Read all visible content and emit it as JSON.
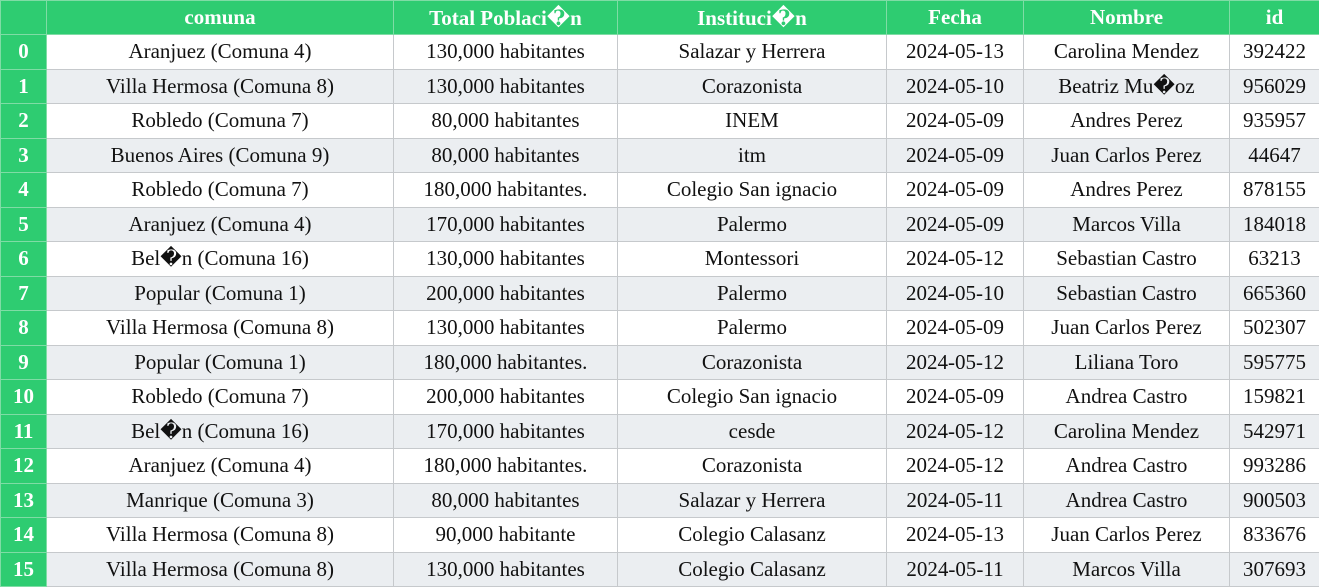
{
  "table": {
    "columns": [
      "",
      "comuna",
      "Total Poblaci�n",
      "Instituci�n",
      "Fecha",
      "Nombre",
      "id"
    ],
    "rows": [
      {
        "index": "0",
        "comuna": "Aranjuez (Comuna 4)",
        "total": "130,000 habitantes",
        "institucion": "Salazar y Herrera",
        "fecha": "2024-05-13",
        "nombre": "Carolina Mendez",
        "id": "392422"
      },
      {
        "index": "1",
        "comuna": "Villa Hermosa (Comuna 8)",
        "total": "130,000 habitantes",
        "institucion": "Corazonista",
        "fecha": "2024-05-10",
        "nombre": "Beatriz Mu�oz",
        "id": "956029"
      },
      {
        "index": "2",
        "comuna": "Robledo (Comuna 7)",
        "total": "80,000 habitantes",
        "institucion": "INEM",
        "fecha": "2024-05-09",
        "nombre": "Andres Perez",
        "id": "935957"
      },
      {
        "index": "3",
        "comuna": "Buenos Aires (Comuna 9)",
        "total": "80,000 habitantes",
        "institucion": "itm",
        "fecha": "2024-05-09",
        "nombre": "Juan Carlos Perez",
        "id": "44647"
      },
      {
        "index": "4",
        "comuna": "Robledo (Comuna 7)",
        "total": "180,000 habitantes.",
        "institucion": "Colegio San ignacio",
        "fecha": "2024-05-09",
        "nombre": "Andres Perez",
        "id": "878155"
      },
      {
        "index": "5",
        "comuna": "Aranjuez (Comuna 4)",
        "total": "170,000 habitantes",
        "institucion": "Palermo",
        "fecha": "2024-05-09",
        "nombre": "Marcos Villa",
        "id": "184018"
      },
      {
        "index": "6",
        "comuna": "Bel�n (Comuna 16)",
        "total": "130,000 habitantes",
        "institucion": "Montessori",
        "fecha": "2024-05-12",
        "nombre": "Sebastian Castro",
        "id": "63213"
      },
      {
        "index": "7",
        "comuna": "Popular (Comuna 1)",
        "total": "200,000 habitantes",
        "institucion": "Palermo",
        "fecha": "2024-05-10",
        "nombre": "Sebastian Castro",
        "id": "665360"
      },
      {
        "index": "8",
        "comuna": "Villa Hermosa (Comuna 8)",
        "total": "130,000 habitantes",
        "institucion": "Palermo",
        "fecha": "2024-05-09",
        "nombre": "Juan Carlos Perez",
        "id": "502307"
      },
      {
        "index": "9",
        "comuna": "Popular (Comuna 1)",
        "total": "180,000 habitantes.",
        "institucion": "Corazonista",
        "fecha": "2024-05-12",
        "nombre": "Liliana Toro",
        "id": "595775"
      },
      {
        "index": "10",
        "comuna": "Robledo (Comuna 7)",
        "total": "200,000 habitantes",
        "institucion": "Colegio San ignacio",
        "fecha": "2024-05-09",
        "nombre": "Andrea Castro",
        "id": "159821"
      },
      {
        "index": "11",
        "comuna": "Bel�n (Comuna 16)",
        "total": "170,000 habitantes",
        "institucion": "cesde",
        "fecha": "2024-05-12",
        "nombre": "Carolina Mendez",
        "id": "542971"
      },
      {
        "index": "12",
        "comuna": "Aranjuez (Comuna 4)",
        "total": "180,000 habitantes.",
        "institucion": "Corazonista",
        "fecha": "2024-05-12",
        "nombre": "Andrea Castro",
        "id": "993286"
      },
      {
        "index": "13",
        "comuna": "Manrique (Comuna 3)",
        "total": "80,000 habitantes",
        "institucion": "Salazar y Herrera",
        "fecha": "2024-05-11",
        "nombre": "Andrea Castro",
        "id": "900503"
      },
      {
        "index": "14",
        "comuna": "Villa Hermosa (Comuna 8)",
        "total": "90,000 habitante",
        "institucion": "Colegio Calasanz",
        "fecha": "2024-05-13",
        "nombre": "Juan Carlos Perez",
        "id": "833676"
      },
      {
        "index": "15",
        "comuna": "Villa Hermosa (Comuna 8)",
        "total": "130,000 habitantes",
        "institucion": "Colegio Calasanz",
        "fecha": "2024-05-11",
        "nombre": "Marcos Villa",
        "id": "307693"
      }
    ]
  },
  "colors": {
    "header_bg": "#2ecc71",
    "header_text": "#ffffff",
    "row_alt_bg": "#ebeef1",
    "row_bg": "#ffffff"
  }
}
